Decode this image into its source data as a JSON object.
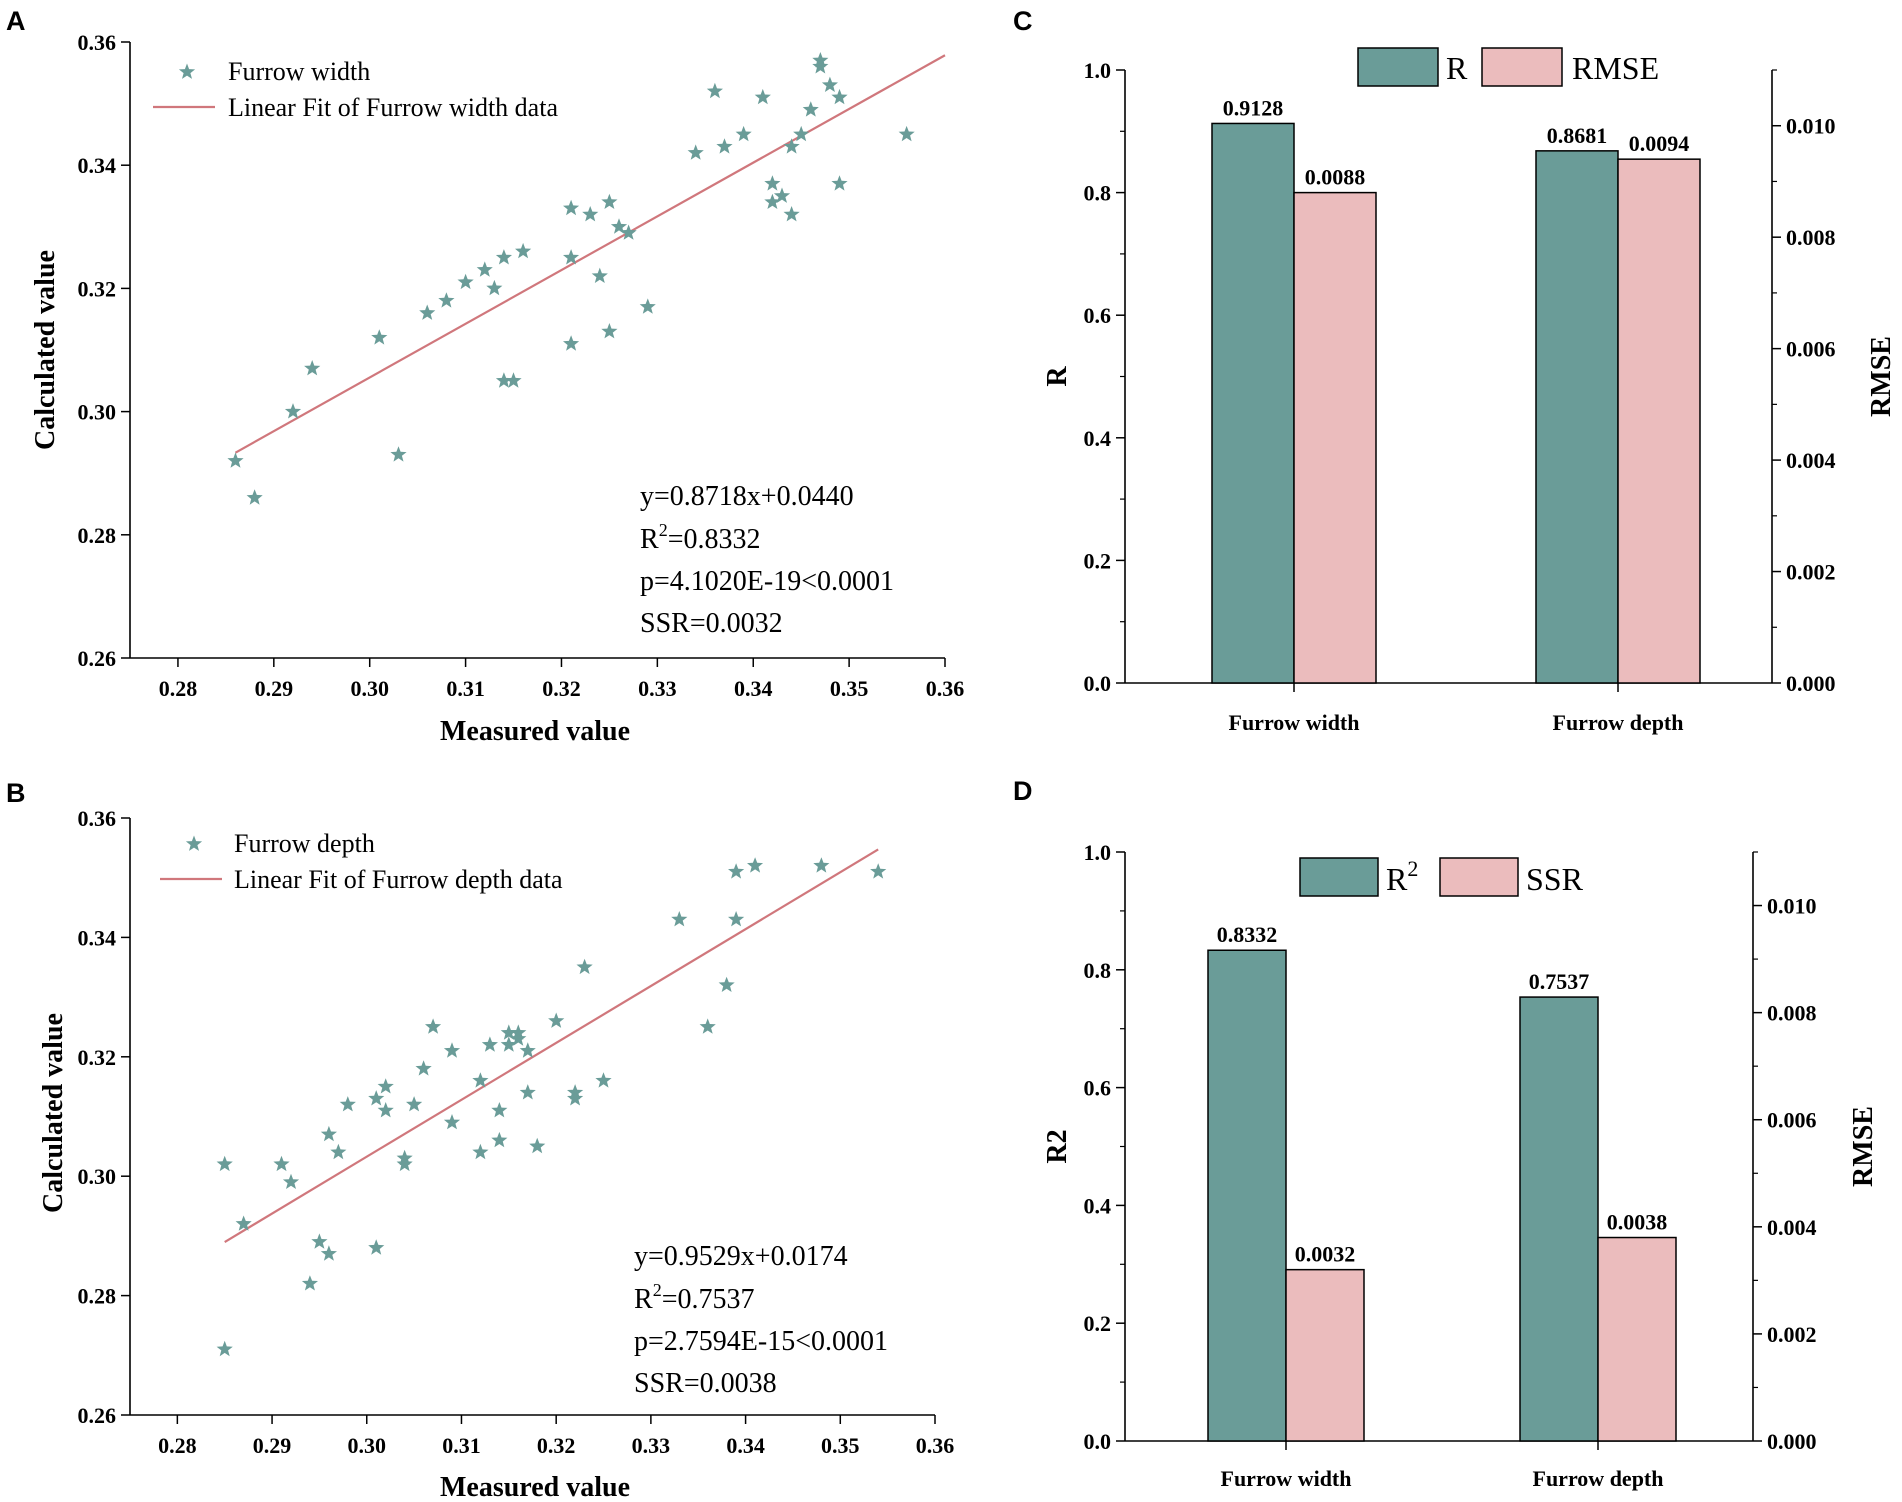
{
  "colors": {
    "teal": "#6a9c98",
    "pink": "#ebbcbd",
    "fit": "#d0777c",
    "axis": "#000000"
  },
  "panelA": {
    "letter": "A",
    "legend_point": "Furrow width",
    "legend_line": "Linear Fit of Furrow width data",
    "marker_icon": "star-icon",
    "annotations": {
      "eq": "y=0.8718x+0.0440",
      "r2_prefix": "R",
      "r2_sup": "2",
      "r2_value": "=0.8332",
      "p": "p=4.1020E-19<0.0001",
      "ssr": "SSR=0.0032"
    },
    "chart_data": {
      "type": "scatter",
      "xlabel": "Measured value",
      "ylabel": "Calculated value",
      "xlim": [
        0.275,
        0.36
      ],
      "ylim": [
        0.26,
        0.36
      ],
      "xticks": [
        "0.28",
        "0.29",
        "0.30",
        "0.31",
        "0.32",
        "0.33",
        "0.34",
        "0.35",
        "0.36"
      ],
      "yticks": [
        "0.26",
        "0.28",
        "0.30",
        "0.32",
        "0.34",
        "0.36"
      ],
      "fit": {
        "slope": 0.8718,
        "intercept": 0.044,
        "x_range": [
          0.286,
          0.36
        ]
      },
      "points": [
        [
          0.286,
          0.292
        ],
        [
          0.288,
          0.286
        ],
        [
          0.292,
          0.3
        ],
        [
          0.294,
          0.307
        ],
        [
          0.301,
          0.312
        ],
        [
          0.303,
          0.293
        ],
        [
          0.306,
          0.316
        ],
        [
          0.308,
          0.318
        ],
        [
          0.31,
          0.321
        ],
        [
          0.312,
          0.323
        ],
        [
          0.313,
          0.32
        ],
        [
          0.314,
          0.325
        ],
        [
          0.314,
          0.305
        ],
        [
          0.315,
          0.305
        ],
        [
          0.316,
          0.326
        ],
        [
          0.321,
          0.333
        ],
        [
          0.321,
          0.325
        ],
        [
          0.321,
          0.311
        ],
        [
          0.323,
          0.332
        ],
        [
          0.324,
          0.322
        ],
        [
          0.325,
          0.334
        ],
        [
          0.325,
          0.313
        ],
        [
          0.326,
          0.33
        ],
        [
          0.327,
          0.329
        ],
        [
          0.329,
          0.317
        ],
        [
          0.334,
          0.342
        ],
        [
          0.336,
          0.352
        ],
        [
          0.337,
          0.343
        ],
        [
          0.339,
          0.345
        ],
        [
          0.341,
          0.351
        ],
        [
          0.342,
          0.337
        ],
        [
          0.342,
          0.334
        ],
        [
          0.343,
          0.335
        ],
        [
          0.344,
          0.343
        ],
        [
          0.344,
          0.332
        ],
        [
          0.345,
          0.345
        ],
        [
          0.346,
          0.349
        ],
        [
          0.347,
          0.357
        ],
        [
          0.347,
          0.356
        ],
        [
          0.348,
          0.353
        ],
        [
          0.349,
          0.351
        ],
        [
          0.349,
          0.337
        ],
        [
          0.356,
          0.345
        ]
      ]
    }
  },
  "panelB": {
    "letter": "B",
    "legend_point": "Furrow depth",
    "legend_line": "Linear Fit of Furrow depth data",
    "marker_icon": "star-icon",
    "annotations": {
      "eq": "y=0.9529x+0.0174",
      "r2_prefix": "R",
      "r2_sup": "2",
      "r2_value": "=0.7537",
      "p": "p=2.7594E-15<0.0001",
      "ssr": "SSR=0.0038"
    },
    "chart_data": {
      "type": "scatter",
      "xlabel": "Measured value",
      "ylabel": "Calculated value",
      "xlim": [
        0.275,
        0.36
      ],
      "ylim": [
        0.26,
        0.36
      ],
      "xticks": [
        "0.28",
        "0.29",
        "0.30",
        "0.31",
        "0.32",
        "0.33",
        "0.34",
        "0.35",
        "0.36"
      ],
      "yticks": [
        "0.26",
        "0.28",
        "0.30",
        "0.32",
        "0.34",
        "0.36"
      ],
      "fit": {
        "slope": 0.9529,
        "intercept": 0.0174,
        "x_range": [
          0.285,
          0.354
        ]
      },
      "points": [
        [
          0.285,
          0.302
        ],
        [
          0.285,
          0.271
        ],
        [
          0.287,
          0.292
        ],
        [
          0.291,
          0.302
        ],
        [
          0.292,
          0.299
        ],
        [
          0.294,
          0.282
        ],
        [
          0.295,
          0.289
        ],
        [
          0.296,
          0.307
        ],
        [
          0.296,
          0.287
        ],
        [
          0.297,
          0.304
        ],
        [
          0.298,
          0.312
        ],
        [
          0.301,
          0.313
        ],
        [
          0.301,
          0.288
        ],
        [
          0.302,
          0.315
        ],
        [
          0.302,
          0.311
        ],
        [
          0.304,
          0.303
        ],
        [
          0.304,
          0.302
        ],
        [
          0.305,
          0.312
        ],
        [
          0.306,
          0.318
        ],
        [
          0.307,
          0.325
        ],
        [
          0.309,
          0.321
        ],
        [
          0.309,
          0.309
        ],
        [
          0.312,
          0.316
        ],
        [
          0.312,
          0.304
        ],
        [
          0.313,
          0.322
        ],
        [
          0.314,
          0.311
        ],
        [
          0.314,
          0.306
        ],
        [
          0.315,
          0.324
        ],
        [
          0.315,
          0.322
        ],
        [
          0.316,
          0.323
        ],
        [
          0.316,
          0.324
        ],
        [
          0.317,
          0.321
        ],
        [
          0.317,
          0.314
        ],
        [
          0.318,
          0.305
        ],
        [
          0.32,
          0.326
        ],
        [
          0.322,
          0.314
        ],
        [
          0.322,
          0.313
        ],
        [
          0.323,
          0.335
        ],
        [
          0.325,
          0.316
        ],
        [
          0.333,
          0.343
        ],
        [
          0.336,
          0.325
        ],
        [
          0.338,
          0.332
        ],
        [
          0.339,
          0.351
        ],
        [
          0.339,
          0.343
        ],
        [
          0.341,
          0.352
        ],
        [
          0.348,
          0.352
        ],
        [
          0.354,
          0.351
        ]
      ]
    }
  },
  "panelC": {
    "letter": "C",
    "chart_data": {
      "type": "bar",
      "categories": [
        "Furrow width",
        "Furrow depth"
      ],
      "series": [
        {
          "name": "R",
          "axis": "left",
          "values": [
            0.9128,
            0.8681
          ],
          "labels": [
            "0.9128",
            "0.8681"
          ],
          "color": "teal"
        },
        {
          "name": "RMSE",
          "axis": "right",
          "values": [
            0.0088,
            0.0094
          ],
          "labels": [
            "0.0088",
            "0.0094"
          ],
          "color": "pink"
        }
      ],
      "ylabel": "R",
      "ylabel_right": "RMSE",
      "ylim": [
        0,
        1.0
      ],
      "ylim_right": [
        0,
        0.011
      ],
      "yticks": [
        "0.0",
        "0.2",
        "0.4",
        "0.6",
        "0.8",
        "1.0"
      ],
      "yticks_right": [
        "0.000",
        "0.002",
        "0.004",
        "0.006",
        "0.008",
        "0.010"
      ],
      "legend": [
        {
          "prefix": "R",
          "sup": ""
        },
        {
          "prefix": "RMSE",
          "sup": ""
        }
      ]
    }
  },
  "panelD": {
    "letter": "D",
    "chart_data": {
      "type": "bar",
      "categories": [
        "Furrow width",
        "Furrow depth"
      ],
      "series": [
        {
          "name": "R2",
          "axis": "left",
          "values": [
            0.8332,
            0.7537
          ],
          "labels": [
            "0.8332",
            "0.7537"
          ],
          "color": "teal"
        },
        {
          "name": "SSR",
          "axis": "right",
          "values": [
            0.0032,
            0.0038
          ],
          "labels": [
            "0.0032",
            "0.0038"
          ],
          "color": "pink"
        }
      ],
      "ylabel": "R2",
      "ylabel_right": "RMSE",
      "ylim": [
        0,
        1.0
      ],
      "ylim_right": [
        0,
        0.011
      ],
      "yticks": [
        "0.0",
        "0.2",
        "0.4",
        "0.6",
        "0.8",
        "1.0"
      ],
      "yticks_right": [
        "0.000",
        "0.002",
        "0.004",
        "0.006",
        "0.008",
        "0.010"
      ],
      "legend": [
        {
          "prefix": "R",
          "sup": "2"
        },
        {
          "prefix": "SSR",
          "sup": ""
        }
      ]
    }
  }
}
